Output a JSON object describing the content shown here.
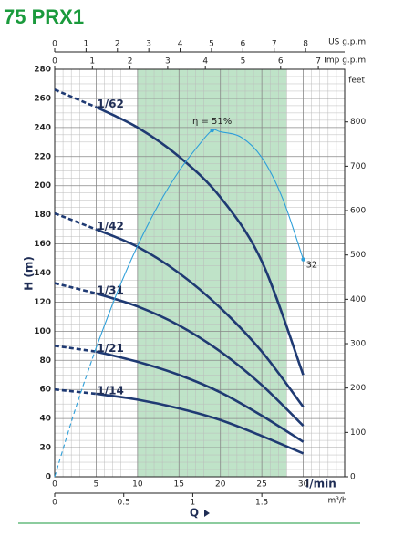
{
  "chart_data": {
    "type": "line",
    "title": "75 PRX1",
    "xlabel": "Q",
    "x_unit": "l/min",
    "ylabel": "H (m)",
    "y2label": "feet",
    "xlim": [
      0,
      35
    ],
    "xticks": [
      0,
      5,
      10,
      15,
      20,
      25,
      30
    ],
    "ylim": [
      0,
      280
    ],
    "yticks": [
      0,
      20,
      40,
      60,
      80,
      100,
      120,
      140,
      160,
      180,
      200,
      220,
      240,
      260,
      280
    ],
    "y2lim": [
      0,
      918.6
    ],
    "y2ticks": [
      0,
      100,
      200,
      300,
      400,
      500,
      600,
      700,
      800
    ],
    "top_axes": [
      {
        "label": "US g.p.m.",
        "xlim": [
          0,
          9.247
        ],
        "xticks": [
          0,
          1,
          2,
          3,
          4,
          5,
          6,
          7,
          8
        ]
      },
      {
        "label": "Imp g.p.m.",
        "xlim": [
          0,
          7.7
        ],
        "xticks": [
          0,
          1,
          2,
          3,
          4,
          5,
          6,
          7
        ]
      }
    ],
    "bottom_axis2": {
      "label": "m³/h",
      "xlim": [
        0,
        2.1
      ],
      "xticks": [
        0,
        0.5,
        1,
        1.5
      ]
    },
    "grid": true,
    "band": [
      10,
      28
    ],
    "band_color": "#a9d9b6",
    "dashed_range": [
      0,
      5
    ],
    "x": [
      0,
      5,
      10,
      15,
      20,
      25,
      30
    ],
    "series": [
      {
        "name": "1/62",
        "color": "#1f3a73",
        "values": [
          266,
          254,
          240,
          220,
          192,
          148,
          70
        ]
      },
      {
        "name": "1/42",
        "color": "#1f3a73",
        "values": [
          181,
          170,
          158,
          140,
          116,
          86,
          48
        ]
      },
      {
        "name": "1/31",
        "color": "#1f3a73",
        "values": [
          133,
          126,
          117,
          104,
          86,
          63,
          35
        ]
      },
      {
        "name": "1/21",
        "color": "#1f3a73",
        "values": [
          90,
          86,
          79,
          70,
          58,
          42,
          24
        ]
      },
      {
        "name": "1/14",
        "color": "#1f3a73",
        "values": [
          60,
          57,
          53,
          47,
          39,
          28,
          16
        ]
      }
    ],
    "efficiency": {
      "color": "#2e9fd9",
      "ylim": [
        0,
        60
      ],
      "x": [
        0,
        2.5,
        5,
        7.5,
        10,
        12.5,
        15,
        17.5,
        19,
        20,
        22.5,
        25,
        27.5,
        30
      ],
      "values": [
        0,
        10,
        19,
        27,
        34,
        40,
        45,
        49,
        51,
        50.8,
        50,
        47,
        41,
        32
      ],
      "value_labels": [
        null,
        null,
        null,
        null,
        null,
        null,
        null,
        null,
        "η = 51%",
        null,
        null,
        null,
        null,
        "32"
      ]
    }
  }
}
